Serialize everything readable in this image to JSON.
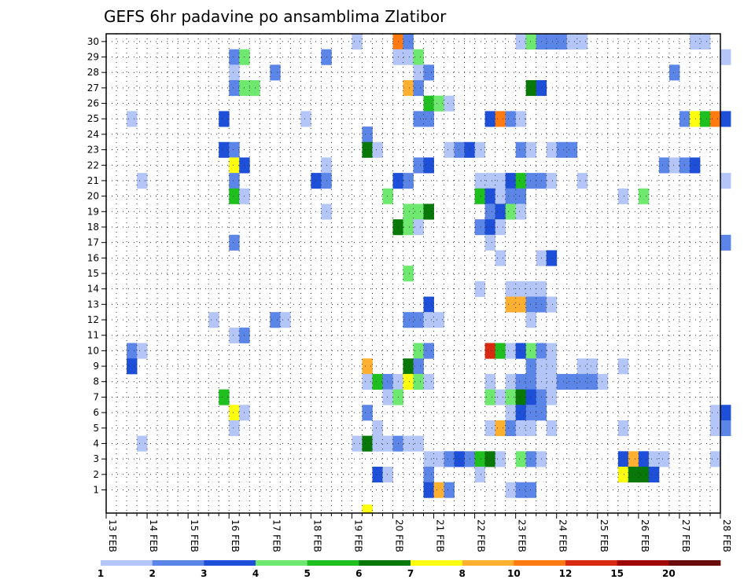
{
  "chart_data": {
    "type": "heatmap",
    "title": "GEFS 6hr padavine po ansamblima Zlatibor",
    "x_ticks": [
      "13 FEB",
      "14 FEB",
      "15 FEB",
      "16 FEB",
      "17 FEB",
      "18 FEB",
      "19 FEB",
      "20 FEB",
      "21 FEB",
      "22 FEB",
      "23 FEB",
      "24 FEB",
      "25 FEB",
      "26 FEB",
      "27 FEB",
      "28 FEB"
    ],
    "y_ticks": [
      "1",
      "2",
      "3",
      "4",
      "5",
      "6",
      "7",
      "8",
      "9",
      "10",
      "11",
      "12",
      "13",
      "14",
      "15",
      "16",
      "17",
      "18",
      "19",
      "20",
      "21",
      "22",
      "23",
      "24",
      "25",
      "26",
      "27",
      "28",
      "29",
      "30"
    ],
    "x_steps_per_day": 4,
    "x_start_day": "13 FEB",
    "grid": "dotted",
    "colorbar": {
      "labels": [
        "1",
        "2",
        "3",
        "4",
        "5",
        "6",
        "7",
        "8",
        "10",
        "12",
        "15",
        "20"
      ],
      "colors": [
        "#b3c6f7",
        "#5c85e8",
        "#1e4fd8",
        "#6ee86e",
        "#20bf20",
        "#087808",
        "#ffff10",
        "#ffb030",
        "#ff7a10",
        "#d82a10",
        "#a00808",
        "#6a0a0a"
      ]
    },
    "cells": [
      [
        30,
        24,
        0
      ],
      [
        30,
        28,
        8
      ],
      [
        30,
        29,
        1
      ],
      [
        30,
        40,
        0
      ],
      [
        30,
        41,
        3
      ],
      [
        30,
        42,
        1
      ],
      [
        30,
        43,
        1
      ],
      [
        30,
        44,
        1
      ],
      [
        30,
        45,
        0
      ],
      [
        30,
        46,
        0
      ],
      [
        30,
        57,
        0
      ],
      [
        30,
        58,
        0
      ],
      [
        29,
        12,
        1
      ],
      [
        29,
        13,
        3
      ],
      [
        29,
        21,
        1
      ],
      [
        29,
        28,
        0
      ],
      [
        29,
        29,
        0
      ],
      [
        29,
        30,
        3
      ],
      [
        29,
        60,
        0
      ],
      [
        28,
        12,
        0
      ],
      [
        28,
        16,
        1
      ],
      [
        28,
        30,
        0
      ],
      [
        28,
        31,
        1
      ],
      [
        28,
        55,
        1
      ],
      [
        27,
        12,
        1
      ],
      [
        27,
        13,
        3
      ],
      [
        27,
        14,
        3
      ],
      [
        27,
        29,
        7
      ],
      [
        27,
        30,
        1
      ],
      [
        27,
        41,
        5
      ],
      [
        27,
        42,
        2
      ],
      [
        26,
        31,
        4
      ],
      [
        26,
        32,
        3
      ],
      [
        26,
        33,
        0
      ],
      [
        25,
        2,
        0
      ],
      [
        25,
        11,
        2
      ],
      [
        25,
        19,
        0
      ],
      [
        25,
        30,
        1
      ],
      [
        25,
        31,
        1
      ],
      [
        25,
        37,
        2
      ],
      [
        25,
        38,
        8
      ],
      [
        25,
        39,
        1
      ],
      [
        25,
        40,
        0
      ],
      [
        25,
        56,
        1
      ],
      [
        25,
        57,
        6
      ],
      [
        25,
        58,
        4
      ],
      [
        25,
        59,
        8
      ],
      [
        25,
        60,
        2
      ],
      [
        24,
        25,
        1
      ],
      [
        23,
        11,
        2
      ],
      [
        23,
        12,
        1
      ],
      [
        23,
        25,
        5
      ],
      [
        23,
        26,
        0
      ],
      [
        23,
        33,
        0
      ],
      [
        23,
        34,
        1
      ],
      [
        23,
        35,
        2
      ],
      [
        23,
        36,
        0
      ],
      [
        23,
        40,
        1
      ],
      [
        23,
        41,
        0
      ],
      [
        23,
        43,
        0
      ],
      [
        23,
        44,
        1
      ],
      [
        23,
        45,
        1
      ],
      [
        22,
        12,
        6
      ],
      [
        22,
        13,
        2
      ],
      [
        22,
        21,
        0
      ],
      [
        22,
        30,
        1
      ],
      [
        22,
        31,
        2
      ],
      [
        22,
        54,
        1
      ],
      [
        22,
        55,
        0
      ],
      [
        22,
        56,
        1
      ],
      [
        22,
        57,
        2
      ],
      [
        21,
        3,
        0
      ],
      [
        21,
        12,
        1
      ],
      [
        21,
        20,
        2
      ],
      [
        21,
        21,
        1
      ],
      [
        21,
        28,
        2
      ],
      [
        21,
        29,
        1
      ],
      [
        21,
        36,
        0
      ],
      [
        21,
        37,
        0
      ],
      [
        21,
        38,
        0
      ],
      [
        21,
        39,
        2
      ],
      [
        21,
        40,
        4
      ],
      [
        21,
        41,
        1
      ],
      [
        21,
        42,
        1
      ],
      [
        21,
        43,
        0
      ],
      [
        21,
        46,
        0
      ],
      [
        21,
        60,
        0
      ],
      [
        20,
        12,
        4
      ],
      [
        20,
        13,
        0
      ],
      [
        20,
        27,
        3
      ],
      [
        20,
        36,
        4
      ],
      [
        20,
        37,
        2
      ],
      [
        20,
        38,
        0
      ],
      [
        20,
        39,
        1
      ],
      [
        20,
        40,
        1
      ],
      [
        20,
        50,
        0
      ],
      [
        20,
        52,
        3
      ],
      [
        19,
        21,
        0
      ],
      [
        19,
        29,
        3
      ],
      [
        19,
        30,
        3
      ],
      [
        19,
        31,
        5
      ],
      [
        19,
        37,
        1
      ],
      [
        19,
        38,
        2
      ],
      [
        19,
        39,
        3
      ],
      [
        19,
        40,
        0
      ],
      [
        18,
        28,
        5
      ],
      [
        18,
        29,
        3
      ],
      [
        18,
        30,
        0
      ],
      [
        18,
        36,
        1
      ],
      [
        18,
        37,
        2
      ],
      [
        18,
        38,
        0
      ],
      [
        17,
        12,
        1
      ],
      [
        17,
        37,
        0
      ],
      [
        17,
        60,
        1
      ],
      [
        16,
        38,
        0
      ],
      [
        16,
        42,
        0
      ],
      [
        16,
        43,
        2
      ],
      [
        15,
        29,
        3
      ],
      [
        14,
        36,
        0
      ],
      [
        14,
        39,
        0
      ],
      [
        14,
        40,
        0
      ],
      [
        14,
        41,
        0
      ],
      [
        14,
        42,
        0
      ],
      [
        13,
        31,
        2
      ],
      [
        13,
        39,
        7
      ],
      [
        13,
        40,
        7
      ],
      [
        13,
        41,
        1
      ],
      [
        13,
        42,
        1
      ],
      [
        13,
        43,
        0
      ],
      [
        12,
        10,
        0
      ],
      [
        12,
        16,
        1
      ],
      [
        12,
        17,
        0
      ],
      [
        12,
        29,
        1
      ],
      [
        12,
        30,
        1
      ],
      [
        12,
        31,
        0
      ],
      [
        12,
        32,
        0
      ],
      [
        12,
        41,
        0
      ],
      [
        11,
        12,
        0
      ],
      [
        11,
        13,
        1
      ],
      [
        10,
        2,
        1
      ],
      [
        10,
        3,
        0
      ],
      [
        10,
        30,
        3
      ],
      [
        10,
        31,
        1
      ],
      [
        10,
        37,
        9
      ],
      [
        10,
        38,
        4
      ],
      [
        10,
        39,
        0
      ],
      [
        10,
        40,
        2
      ],
      [
        10,
        41,
        3
      ],
      [
        10,
        42,
        1
      ],
      [
        10,
        43,
        0
      ],
      [
        9,
        2,
        2
      ],
      [
        9,
        25,
        7
      ],
      [
        9,
        29,
        5
      ],
      [
        9,
        30,
        1
      ],
      [
        9,
        41,
        1
      ],
      [
        9,
        42,
        0
      ],
      [
        9,
        43,
        0
      ],
      [
        9,
        46,
        0
      ],
      [
        9,
        47,
        0
      ],
      [
        9,
        50,
        0
      ],
      [
        8,
        25,
        0
      ],
      [
        8,
        26,
        4
      ],
      [
        8,
        27,
        1
      ],
      [
        8,
        28,
        0
      ],
      [
        8,
        29,
        6
      ],
      [
        8,
        30,
        3
      ],
      [
        8,
        31,
        0
      ],
      [
        8,
        37,
        0
      ],
      [
        8,
        39,
        0
      ],
      [
        8,
        40,
        1
      ],
      [
        8,
        41,
        1
      ],
      [
        8,
        42,
        0
      ],
      [
        8,
        43,
        0
      ],
      [
        8,
        44,
        1
      ],
      [
        8,
        45,
        1
      ],
      [
        8,
        46,
        1
      ],
      [
        8,
        47,
        1
      ],
      [
        8,
        48,
        0
      ],
      [
        7,
        11,
        4
      ],
      [
        7,
        27,
        0
      ],
      [
        7,
        28,
        3
      ],
      [
        7,
        37,
        3
      ],
      [
        7,
        38,
        0
      ],
      [
        7,
        39,
        3
      ],
      [
        7,
        40,
        5
      ],
      [
        7,
        41,
        2
      ],
      [
        7,
        42,
        1
      ],
      [
        7,
        43,
        0
      ],
      [
        6,
        12,
        6
      ],
      [
        6,
        13,
        0
      ],
      [
        6,
        25,
        1
      ],
      [
        6,
        39,
        0
      ],
      [
        6,
        40,
        2
      ],
      [
        6,
        41,
        1
      ],
      [
        6,
        42,
        1
      ],
      [
        6,
        59,
        0
      ],
      [
        6,
        60,
        2
      ],
      [
        5,
        12,
        0
      ],
      [
        5,
        26,
        0
      ],
      [
        5,
        37,
        0
      ],
      [
        5,
        38,
        7
      ],
      [
        5,
        39,
        1
      ],
      [
        5,
        40,
        0
      ],
      [
        5,
        41,
        0
      ],
      [
        5,
        43,
        0
      ],
      [
        5,
        50,
        0
      ],
      [
        5,
        59,
        0
      ],
      [
        5,
        60,
        1
      ],
      [
        4,
        3,
        0
      ],
      [
        4,
        24,
        0
      ],
      [
        4,
        25,
        5
      ],
      [
        4,
        26,
        0
      ],
      [
        4,
        27,
        0
      ],
      [
        4,
        28,
        1
      ],
      [
        4,
        29,
        0
      ],
      [
        4,
        30,
        0
      ],
      [
        3,
        31,
        0
      ],
      [
        3,
        32,
        0
      ],
      [
        3,
        33,
        1
      ],
      [
        3,
        34,
        2
      ],
      [
        3,
        35,
        1
      ],
      [
        3,
        36,
        4
      ],
      [
        3,
        37,
        5
      ],
      [
        3,
        38,
        0
      ],
      [
        3,
        40,
        3
      ],
      [
        3,
        41,
        1
      ],
      [
        3,
        42,
        0
      ],
      [
        3,
        50,
        2
      ],
      [
        3,
        51,
        7
      ],
      [
        3,
        52,
        2
      ],
      [
        3,
        53,
        0
      ],
      [
        3,
        54,
        0
      ],
      [
        3,
        59,
        0
      ],
      [
        2,
        26,
        2
      ],
      [
        2,
        27,
        0
      ],
      [
        2,
        31,
        1
      ],
      [
        2,
        36,
        0
      ],
      [
        2,
        50,
        6
      ],
      [
        2,
        51,
        5
      ],
      [
        2,
        52,
        5
      ],
      [
        2,
        53,
        2
      ],
      [
        1,
        31,
        2
      ],
      [
        1,
        32,
        7
      ],
      [
        1,
        33,
        1
      ],
      [
        1,
        39,
        0
      ],
      [
        1,
        40,
        1
      ],
      [
        1,
        41,
        1
      ],
      [
        0,
        25,
        6
      ]
    ]
  }
}
